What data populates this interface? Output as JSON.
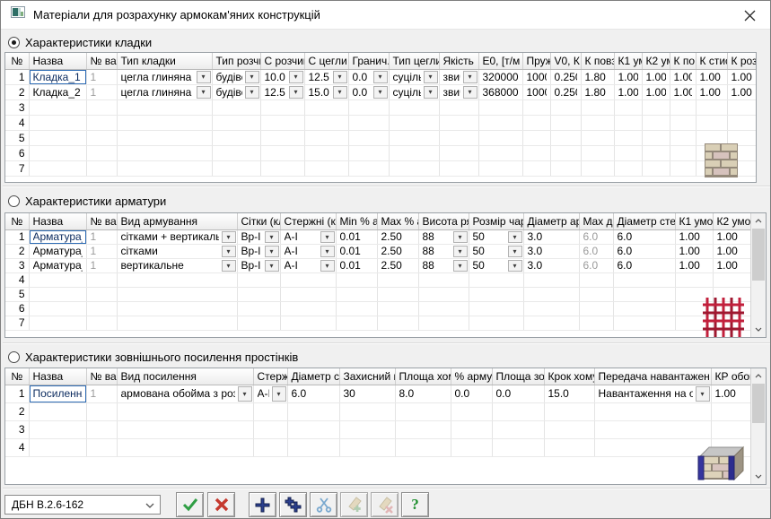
{
  "window": {
    "title": "Матеріали для розрахунку армокам'яних конструкцій"
  },
  "toolbar": {
    "combo_value": "ДБН В.2.6-162",
    "buttons": [
      {
        "name": "apply-button",
        "icon": "check-icon"
      },
      {
        "name": "cancel-button",
        "icon": "x-icon"
      },
      {
        "name": "add-row-button",
        "icon": "plus-icon"
      },
      {
        "name": "add-copy-row-button",
        "icon": "double-plus-icon"
      },
      {
        "name": "cut-row-button",
        "icon": "scissors-icon"
      },
      {
        "name": "paste-add-button",
        "icon": "paste-add-icon"
      },
      {
        "name": "paste-delete-button",
        "icon": "paste-delete-icon"
      },
      {
        "name": "help-button",
        "icon": "help-icon"
      }
    ]
  },
  "tables": [
    {
      "name": "masonry",
      "radio_label": "Характеристики кладки",
      "radio_selected": true,
      "icon": "brick-wall-icon",
      "visible_rows": 7,
      "headers": [
        "№",
        "Назва",
        "№ ва",
        "Тип кладки",
        "Тип розчи",
        "С розчин",
        "С цегли",
        "Гранич. д",
        "Тип цегли",
        "Якість",
        "Е0, [т/м",
        "Пруж",
        "V0, К",
        "К повз",
        "К1 ум",
        "К2 ум",
        "К по",
        "К стис",
        "К роз"
      ],
      "rows": [
        [
          "Кладка_1",
          "1",
          "цегла глиняна зв",
          "будівел",
          "10.0",
          "12.5",
          "0.0",
          "суціль",
          "звич",
          "320000.",
          "1000",
          "0.250",
          "1.80",
          "1.00",
          "1.00",
          "1.00",
          "1.00",
          "1.00"
        ],
        [
          "Кладка_2",
          "1",
          "цегла глиняна зв",
          "будівел",
          "12.5",
          "15.0",
          "0.0",
          "суціль",
          "звич",
          "368000.",
          "1000",
          "0.250",
          "1.80",
          "1.00",
          "1.00",
          "1.00",
          "1.00",
          "1.00"
        ]
      ]
    },
    {
      "name": "reinforcement",
      "radio_label": "Характеристики арматури",
      "radio_selected": false,
      "icon": "mesh-icon",
      "visible_rows": 7,
      "headers": [
        "№",
        "Назва",
        "№ ва",
        "Вид армування",
        "Сітки (кл",
        "Стержні (к",
        "Min % ар",
        "Max % а",
        "Висота ря",
        "Розмір чару",
        "Діаметр ар",
        "Max діа",
        "Діаметр сте",
        "К1 умов",
        "К2 умов"
      ],
      "rows": [
        [
          "Арматура_",
          "1",
          "сітками + вертикальне",
          "Вр-I",
          "А-I",
          "0.01",
          "2.50",
          "88",
          "50",
          "3.0",
          "6.0",
          "6.0",
          "1.00",
          "1.00"
        ],
        [
          "Арматура_",
          "1",
          "сітками",
          "Вр-I",
          "А-I",
          "0.01",
          "2.50",
          "88",
          "50",
          "3.0",
          "6.0",
          "6.0",
          "1.00",
          "1.00"
        ],
        [
          "Арматура_",
          "1",
          "вертикальне",
          "Вр-I",
          "А-I",
          "0.01",
          "2.50",
          "88",
          "50",
          "3.0",
          "6.0",
          "6.0",
          "1.00",
          "1.00"
        ]
      ]
    },
    {
      "name": "external-strengthening",
      "radio_label": "Характеристики зовнішнього посилення простінків",
      "radio_selected": false,
      "icon": "brick-pier-icon",
      "visible_rows": 4,
      "headers": [
        "№",
        "Назва",
        "№ ва",
        "Вид посилення",
        "Стерж",
        "Діаметр ст",
        "Захисний ш",
        "Площа хому",
        "% арму",
        "Площа зовн",
        "Крок хому",
        "Передача навантажен",
        "КР обой"
      ],
      "rows": [
        [
          "Посилення",
          "1",
          "армована обойма з розчин",
          "А-I",
          "6.0",
          "30",
          "8.0",
          "0.0",
          "0.0",
          "15.0",
          "Навантаження на о",
          "1.00"
        ]
      ]
    }
  ]
}
